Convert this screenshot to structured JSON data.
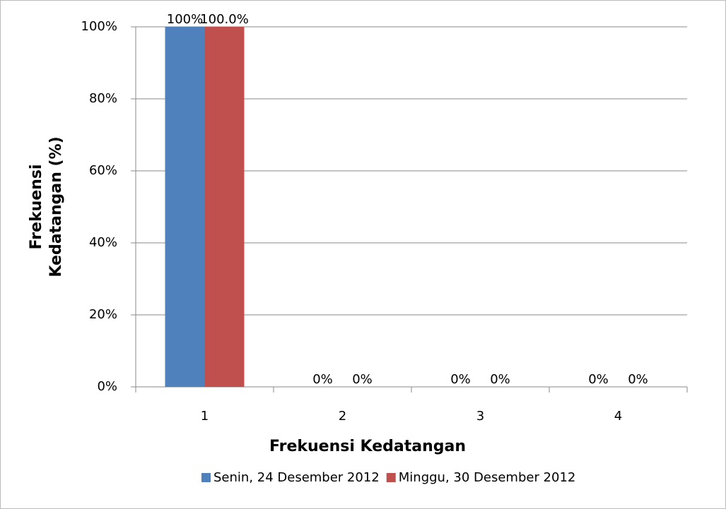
{
  "chart_data": {
    "type": "bar",
    "x_label": "Frekuensi Kedatangan",
    "y_label": [
      "Frekuensi",
      "Kedatangan (%)"
    ],
    "categories": [
      "1",
      "2",
      "3",
      "4"
    ],
    "series": [
      {
        "name": "Senin, 24 Desember 2012",
        "color": "#4f81bd",
        "values": [
          100,
          0,
          0,
          0
        ],
        "value_labels": [
          "100%",
          "0%",
          "0%",
          "0%"
        ]
      },
      {
        "name": "Minggu, 30 Desember 2012",
        "color": "#c0504d",
        "values": [
          100,
          0,
          0,
          0
        ],
        "value_labels": [
          "100.0%",
          "0%",
          "0%",
          "0%"
        ]
      }
    ],
    "ylim": [
      0,
      100
    ],
    "yticks": [
      {
        "value": 0,
        "label": "0%"
      },
      {
        "value": 20,
        "label": "20%"
      },
      {
        "value": 40,
        "label": "40%"
      },
      {
        "value": 60,
        "label": "60%"
      },
      {
        "value": 80,
        "label": "80%"
      },
      {
        "value": 100,
        "label": "100%"
      }
    ],
    "grid": true,
    "legend": "bottom"
  }
}
